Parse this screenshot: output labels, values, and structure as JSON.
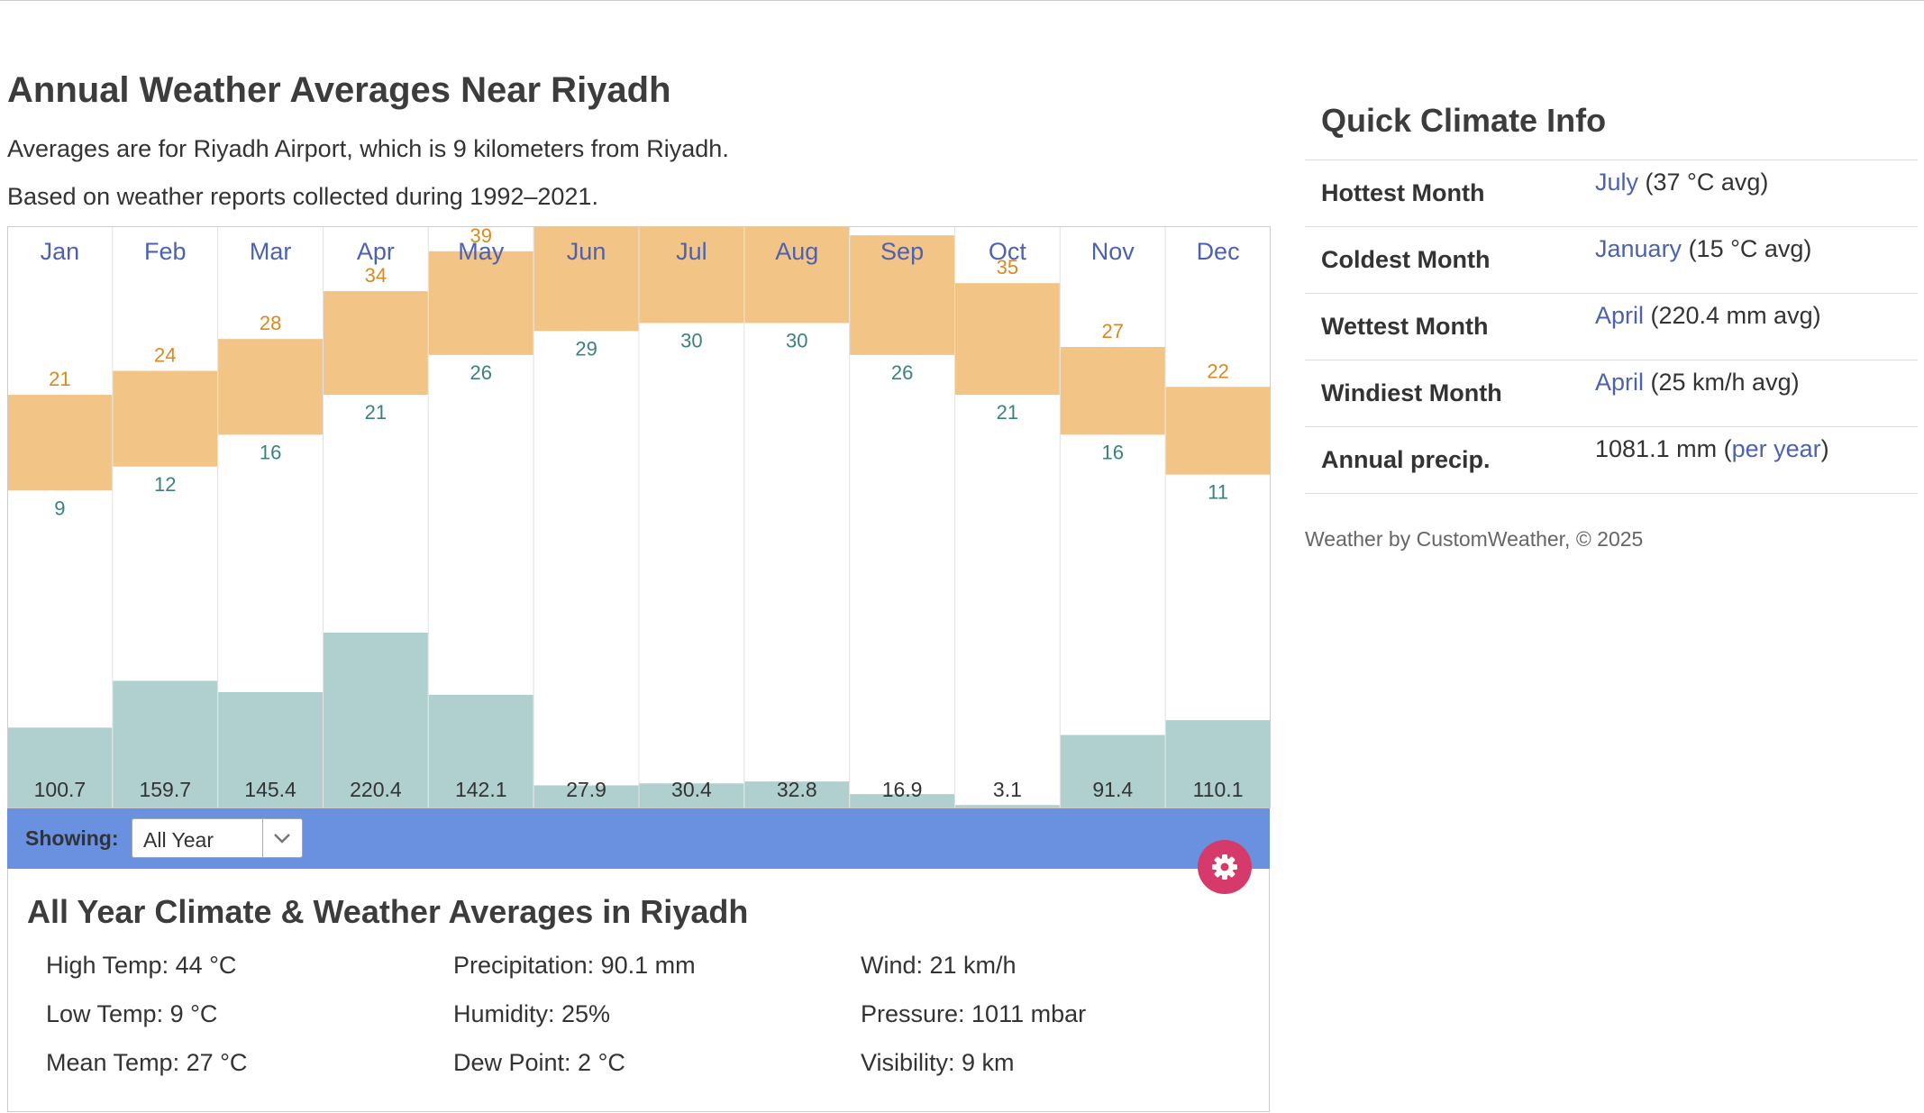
{
  "page": {
    "title": "Annual Weather Averages Near Riyadh",
    "subtitle1": "Averages are for Riyadh Airport, which is 9 kilometers from Riyadh.",
    "subtitle2": "Based on weather reports collected during 1992–2021."
  },
  "colors": {
    "temp_band": "#f2c587",
    "precip_bar": "#b0d0cf",
    "high_label": "#d98a1e",
    "low_label": "#3d8080",
    "month_label": "#4c62b0",
    "showing_bar": "#6a91df",
    "gear_button": "#d63a6a"
  },
  "chart_data": {
    "type": "bar",
    "title": "",
    "categories": [
      "Jan",
      "Feb",
      "Mar",
      "Apr",
      "May",
      "Jun",
      "Jul",
      "Aug",
      "Sep",
      "Oct",
      "Nov",
      "Dec"
    ],
    "series": [
      {
        "name": "High",
        "unit": "°C",
        "values": [
          21,
          24,
          28,
          34,
          39,
          43,
          44,
          44,
          41,
          35,
          27,
          22
        ]
      },
      {
        "name": "Low",
        "unit": "°C",
        "values": [
          9,
          12,
          16,
          21,
          26,
          29,
          30,
          30,
          26,
          21,
          16,
          11
        ]
      },
      {
        "name": "Precipitation",
        "unit": "mm",
        "values": [
          100.7,
          159.7,
          145.4,
          220.4,
          142.1,
          27.9,
          30.4,
          32.8,
          16.9,
          3.1,
          91.4,
          110.1
        ]
      }
    ],
    "precip_labels": [
      "100.7",
      "159.7",
      "145.4",
      "220.4",
      "142.1",
      "27.9",
      "30.4",
      "32.8",
      "16.9",
      "3.1",
      "91.4",
      "110.1"
    ],
    "temp_range": [
      -3,
      51
    ],
    "precip_range": [
      0,
      316
    ],
    "grid": false,
    "legend": "none"
  },
  "showing": {
    "label": "Showing:",
    "selected": "All Year"
  },
  "summary": {
    "title": "All Year Climate & Weather Averages in Riyadh",
    "high_temp": "High Temp: 44 °C",
    "low_temp": "Low Temp: 9 °C",
    "mean_temp": "Mean Temp: 27 °C",
    "precipitation": "Precipitation: 90.1 mm",
    "humidity": "Humidity: 25%",
    "dew_point": "Dew Point: 2 °C",
    "wind": "Wind: 21 km/h",
    "pressure": "Pressure: 1011 mbar",
    "visibility": "Visibility: 9 km"
  },
  "quick_climate": {
    "title": "Quick Climate Info",
    "rows": [
      {
        "label": "Hottest Month",
        "link": "July",
        "rest": " (37 °C avg)"
      },
      {
        "label": "Coldest Month",
        "link": "January",
        "rest": " (15 °C avg)"
      },
      {
        "label": "Wettest Month",
        "link": "April",
        "rest": " (220.4 mm avg)"
      },
      {
        "label": "Windiest Month",
        "link": "April",
        "rest": " (25 km/h avg)"
      }
    ],
    "annual": {
      "label": "Annual precip.",
      "value": "1081.1 mm (",
      "link": "per year",
      "close": ")"
    }
  },
  "credit": "Weather by CustomWeather, © 2025"
}
